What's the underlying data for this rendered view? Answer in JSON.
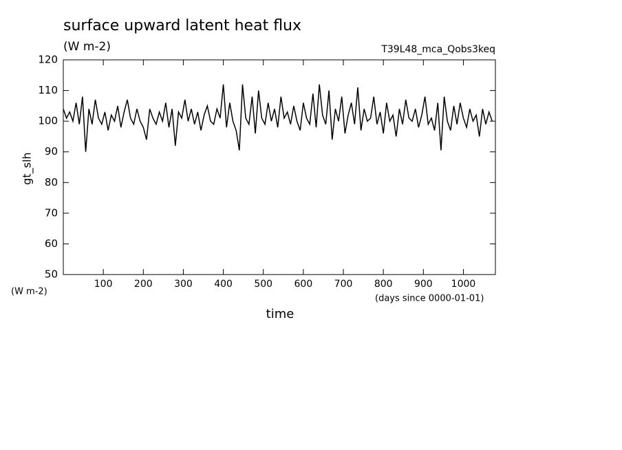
{
  "chart_data": {
    "type": "line",
    "title": "surface upward latent heat flux",
    "subtitle": "(W m-2)",
    "run_label": "T39L48_mca_Qobs3keq",
    "y_label": "gt_slh",
    "y_units": "(W m-2)",
    "x_label": "time",
    "x_units": "(days since 0000-01-01)",
    "color": "#000000",
    "grid": false,
    "xlim": [
      0,
      1080
    ],
    "xticks": [
      100,
      200,
      300,
      400,
      500,
      600,
      700,
      800,
      900,
      1000
    ],
    "ylim": [
      50,
      120
    ],
    "yticks": [
      50,
      60,
      70,
      80,
      90,
      100,
      110,
      120
    ],
    "x": [
      0,
      8,
      16,
      24,
      32,
      40,
      48,
      56,
      64,
      72,
      80,
      88,
      96,
      104,
      112,
      120,
      128,
      136,
      144,
      152,
      160,
      168,
      176,
      184,
      192,
      200,
      208,
      216,
      224,
      232,
      240,
      248,
      256,
      264,
      272,
      280,
      288,
      296,
      304,
      312,
      320,
      328,
      336,
      344,
      352,
      360,
      368,
      376,
      384,
      392,
      400,
      408,
      416,
      424,
      432,
      440,
      448,
      456,
      464,
      472,
      480,
      488,
      496,
      504,
      512,
      520,
      528,
      536,
      544,
      552,
      560,
      568,
      576,
      584,
      592,
      600,
      608,
      616,
      624,
      632,
      640,
      648,
      656,
      664,
      672,
      680,
      688,
      696,
      704,
      712,
      720,
      728,
      736,
      744,
      752,
      760,
      768,
      776,
      784,
      792,
      800,
      808,
      816,
      824,
      832,
      840,
      848,
      856,
      864,
      872,
      880,
      888,
      896,
      904,
      912,
      920,
      928,
      936,
      944,
      952,
      960,
      968,
      976,
      984,
      992,
      1000,
      1008,
      1016,
      1024,
      1032,
      1040,
      1048,
      1056,
      1064,
      1072
    ],
    "values": [
      104,
      101,
      103,
      100,
      106,
      99,
      108,
      90,
      104,
      99,
      107,
      101,
      99,
      103,
      97,
      102,
      100,
      105,
      98,
      103,
      107,
      101,
      99,
      104,
      100,
      98,
      94,
      104,
      101,
      99,
      103,
      100,
      106,
      98,
      104,
      92,
      103,
      101,
      107,
      100,
      104,
      99,
      103,
      97,
      102,
      105,
      100,
      99,
      104,
      101,
      112,
      98,
      106,
      100,
      97,
      90.5,
      112,
      101,
      99,
      108,
      96,
      110,
      101,
      99,
      106,
      100,
      104,
      98,
      108,
      101,
      103,
      99,
      105,
      100,
      97,
      106,
      101,
      99,
      109,
      98,
      112,
      102,
      99,
      110,
      94,
      104,
      100,
      108,
      96,
      102,
      106,
      99,
      111,
      97,
      104,
      100,
      101,
      108,
      99,
      103,
      96,
      106,
      100,
      102,
      95,
      104,
      99,
      107,
      101,
      100,
      104,
      98,
      102,
      108,
      99,
      101,
      97,
      106,
      90.5,
      108,
      100,
      97,
      105,
      99,
      106,
      101,
      98,
      104,
      100,
      102,
      95,
      104,
      99,
      103,
      100
    ]
  }
}
